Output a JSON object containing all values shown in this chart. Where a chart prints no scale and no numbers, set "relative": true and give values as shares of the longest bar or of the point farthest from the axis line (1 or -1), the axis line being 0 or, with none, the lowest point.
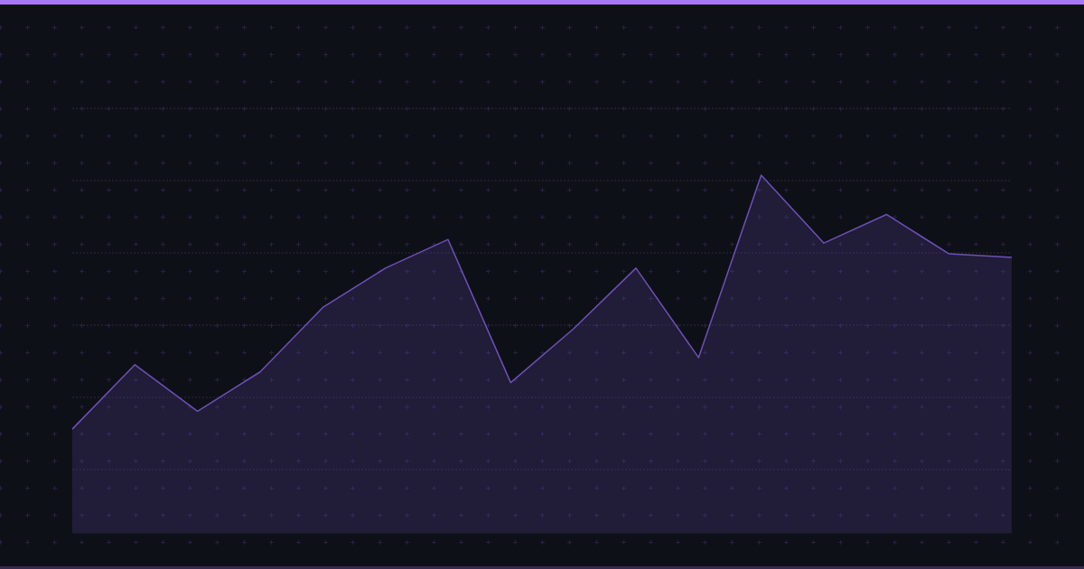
{
  "chart_data": {
    "type": "area",
    "relative": true,
    "grid": "y",
    "categories": [
      null,
      null,
      null,
      null,
      null,
      null,
      null,
      null,
      null,
      null,
      null,
      null,
      null,
      null,
      null,
      null
    ],
    "color": "#6e50b8",
    "values": [
      0.29,
      0.47,
      0.34,
      0.45,
      0.63,
      0.74,
      0.82,
      0.42,
      0.57,
      0.74,
      0.49,
      1,
      0.81,
      0.89,
      0.78,
      0.77
    ]
  }
}
